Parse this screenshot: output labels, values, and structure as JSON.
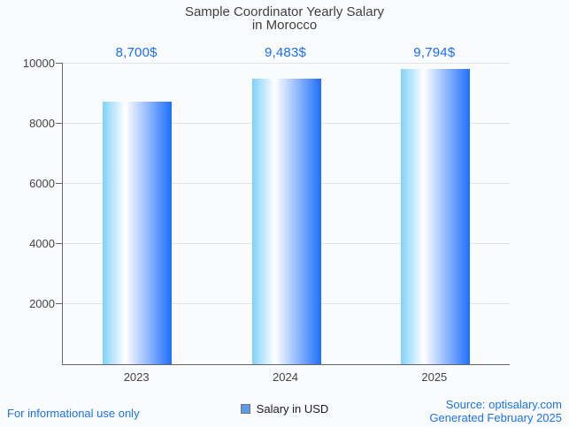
{
  "chart_data": {
    "type": "bar",
    "title": "Sample Coordinator Yearly Salary in Morocco",
    "title_line1": "Sample Coordinator Yearly Salary",
    "title_line2": "in Morocco",
    "categories": [
      "2023",
      "2024",
      "2025"
    ],
    "values": [
      8700,
      9483,
      9794
    ],
    "value_labels": [
      "8,700$",
      "9,483$",
      "9,794$"
    ],
    "series_name": "Salary in USD",
    "xlabel": "",
    "ylabel": "",
    "ylim": [
      0,
      10000
    ],
    "yticks": [
      2000,
      4000,
      6000,
      8000,
      10000
    ],
    "grid": true,
    "legend_position": "bottom",
    "colors": {
      "bar_gradient_left": "#7fd2fa",
      "bar_gradient_mid": "#ffffff",
      "bar_gradient_right": "#1e6ffc",
      "annotation_text": "#1a6ef5",
      "gridline": "#e4e4e7",
      "axis_line": "#66666b",
      "title_text": "#3f3f3f",
      "tick_text": "#444444",
      "legend_swatch_fill": "#5b9bea",
      "legend_swatch_border": "#757575",
      "legend_text": "#1b1b1b",
      "background": "#fafbfd"
    }
  },
  "legend": {
    "label": "Salary in USD"
  },
  "footer": {
    "disclaimer": "For informational use only",
    "source": "Source: optisalary.com",
    "generated": "Generated February 2025",
    "link_color": "#1a73e8"
  }
}
